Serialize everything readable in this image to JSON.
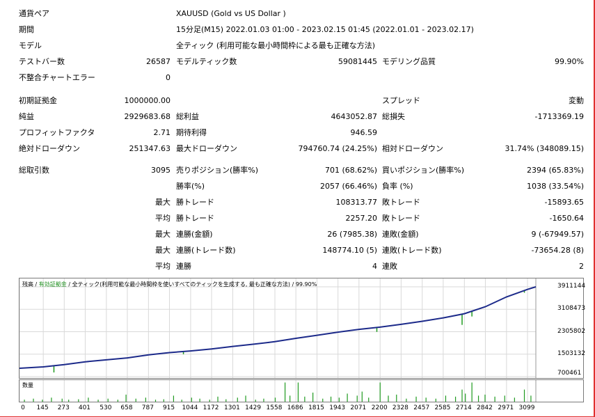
{
  "report": {
    "symbol_label": "通貨ペア",
    "symbol_value": "XAUUSD (Gold vs US Dollar )",
    "period_label": "期間",
    "period_value": "15分足(M15) 2022.01.03 01:00 - 2023.02.15 01:45 (2022.01.01 - 2023.02.17)",
    "model_label": "モデル",
    "model_value": "全ティック (利用可能な最小時間枠による最も正確な方法)",
    "bars_label": "テストバー数",
    "bars_value": "26587",
    "ticks_label": "モデルティック数",
    "ticks_value": "59081445",
    "quality_label": "モデリング品質",
    "quality_value": "99.90%",
    "errors_label": "不整合チャートエラー",
    "errors_value": "0",
    "deposit_label": "初期証拠金",
    "deposit_value": "1000000.00",
    "spread_label": "スプレッド",
    "spread_value": "変動",
    "net_label": "純益",
    "net_value": "2929683.68",
    "gross_profit_label": "総利益",
    "gross_profit_value": "4643052.87",
    "gross_loss_label": "総損失",
    "gross_loss_value": "-1713369.19",
    "pf_label": "プロフィットファクタ",
    "pf_value": "2.71",
    "payoff_label": "期待利得",
    "payoff_value": "946.59",
    "abs_dd_label": "絶対ドローダウン",
    "abs_dd_value": "251347.63",
    "max_dd_label": "最大ドローダウン",
    "max_dd_value": "794760.74 (24.25%)",
    "rel_dd_label": "相対ドローダウン",
    "rel_dd_value": "31.74% (348089.15)",
    "trades_label": "総取引数",
    "trades_value": "3095",
    "short_label": "売りポジション(勝率%)",
    "short_value": "701 (68.62%)",
    "long_label": "買いポジション(勝率%)",
    "long_value": "2394 (65.83%)",
    "win_label": "勝率(%)",
    "win_value": "2057 (66.46%)",
    "loss_label": "負率 (%)",
    "loss_value": "1038 (33.54%)",
    "max_prefix": "最大",
    "avg_prefix": "平均",
    "largest_win_label": "勝トレード",
    "largest_win_value": "108313.77",
    "largest_loss_label": "敗トレード",
    "largest_loss_value": "-15893.65",
    "avg_win_label": "勝トレード",
    "avg_win_value": "2257.20",
    "avg_loss_label": "敗トレード",
    "avg_loss_value": "-1650.64",
    "consec_wins_amt_label": "連勝(金額)",
    "consec_wins_amt_value": "26 (7985.38)",
    "consec_losses_amt_label": "連敗(金額)",
    "consec_losses_amt_value": "9 (-67949.57)",
    "consec_wins_trades_label": "連勝(トレード数)",
    "consec_wins_trades_value": "148774.10 (5)",
    "consec_losses_trades_label": "連敗(トレード数)",
    "consec_losses_trades_value": "-73654.28 (8)",
    "avg_consec_wins_label": "連勝",
    "avg_consec_wins_value": "4",
    "avg_consec_losses_label": "連敗",
    "avg_consec_losses_value": "2"
  },
  "chart_legend": {
    "balance": "残高",
    "sep1": " / ",
    "equity": "有効証拠金",
    "sep2": " / ",
    "model": "全ティック(利用可能な最小時間枠を使いすべてのティックを生成する, 最も正確な方法)",
    "sep3": " / ",
    "quality": "99.90%",
    "volume": "数量"
  },
  "chart_data": {
    "type": "line",
    "y_ticks": [
      "3911144",
      "3108473",
      "2305802",
      "1503132",
      "700461"
    ],
    "x_ticks": [
      "0",
      "145",
      "273",
      "401",
      "530",
      "658",
      "787",
      "915",
      "1044",
      "1172",
      "1301",
      "1429",
      "1558",
      "1686",
      "1815",
      "1943",
      "2071",
      "2200",
      "2328",
      "2457",
      "2585",
      "2714",
      "2842",
      "2971",
      "3099"
    ],
    "ylim": [
      700461,
      3911144
    ],
    "xlim": [
      0,
      3150
    ],
    "balance": {
      "x": [
        0,
        145,
        273,
        401,
        530,
        658,
        787,
        915,
        1044,
        1172,
        1301,
        1429,
        1558,
        1686,
        1815,
        1943,
        2071,
        2200,
        2328,
        2457,
        2585,
        2714,
        2842,
        2971,
        3099,
        3150
      ],
      "y": [
        1000000,
        1050000,
        1130000,
        1230000,
        1300000,
        1370000,
        1480000,
        1560000,
        1620000,
        1690000,
        1780000,
        1860000,
        1950000,
        2070000,
        2180000,
        2290000,
        2390000,
        2470000,
        2570000,
        2680000,
        2800000,
        2950000,
        3200000,
        3550000,
        3820000,
        3911144
      ]
    },
    "equity_dips": [
      {
        "x": 210,
        "y": 850000
      },
      {
        "x": 630,
        "y": 1350000
      },
      {
        "x": 1000,
        "y": 1500000
      },
      {
        "x": 1520,
        "y": 1900000
      },
      {
        "x": 1880,
        "y": 2220000
      },
      {
        "x": 2180,
        "y": 2300000
      },
      {
        "x": 2700,
        "y": 2550000
      },
      {
        "x": 2760,
        "y": 2850000
      },
      {
        "x": 3080,
        "y": 3700000
      }
    ],
    "volume": {
      "x": [
        30,
        85,
        140,
        195,
        260,
        300,
        360,
        420,
        480,
        540,
        600,
        650,
        710,
        770,
        830,
        880,
        940,
        990,
        1050,
        1100,
        1160,
        1210,
        1260,
        1330,
        1380,
        1440,
        1490,
        1560,
        1620,
        1650,
        1700,
        1740,
        1790,
        1850,
        1900,
        1950,
        2000,
        2060,
        2090,
        2130,
        2200,
        2250,
        2300,
        2360,
        2420,
        2480,
        2540,
        2600,
        2660,
        2700,
        2720,
        2760,
        2800,
        2840,
        2900,
        2960,
        3020,
        3080,
        3120
      ],
      "y": [
        0.1,
        0.15,
        0.1,
        0.2,
        0.15,
        0.1,
        0.12,
        0.2,
        0.1,
        0.15,
        0.1,
        0.35,
        0.15,
        0.2,
        0.1,
        0.12,
        0.3,
        0.1,
        0.2,
        0.15,
        0.1,
        0.25,
        0.12,
        0.2,
        0.3,
        0.1,
        0.15,
        0.2,
        0.95,
        0.3,
        0.95,
        0.25,
        0.45,
        0.15,
        0.25,
        0.2,
        0.4,
        0.3,
        0.5,
        0.2,
        0.95,
        0.3,
        0.35,
        0.15,
        0.25,
        0.2,
        0.15,
        0.3,
        0.25,
        0.6,
        0.4,
        0.95,
        0.3,
        0.35,
        0.25,
        0.3,
        0.2,
        0.6,
        0.3
      ]
    }
  },
  "colors": {
    "balance": "#1c2a8a",
    "equity": "#1f9a1f",
    "grid": "#d9d9d9",
    "frame": "#e03030"
  }
}
